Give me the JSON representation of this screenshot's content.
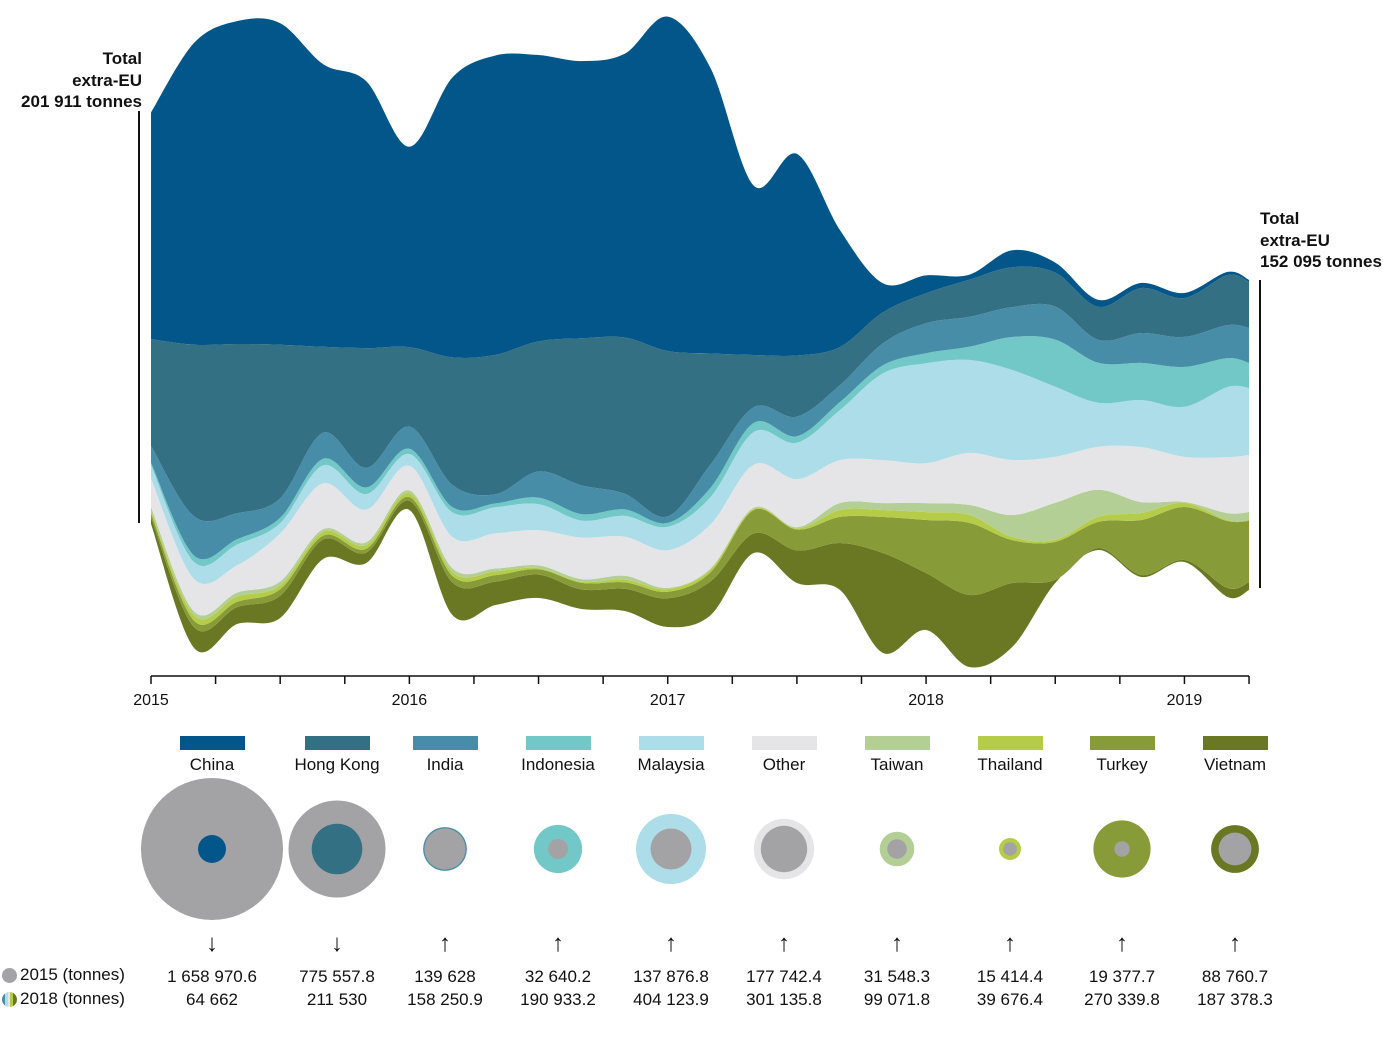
{
  "left_total": {
    "line1": "Total",
    "line2": "extra-EU",
    "line3": "201 911 tonnes"
  },
  "right_total": {
    "line1": "Total",
    "line2": "extra-EU",
    "line3": "152 095 tonnes"
  },
  "chart_data": {
    "type": "area",
    "subtype": "streamgraph",
    "unit": "tonnes",
    "x": [
      "2015-01",
      "2015-03",
      "2015-05",
      "2015-07",
      "2015-09",
      "2015-11",
      "2016-01",
      "2016-03",
      "2016-05",
      "2016-07",
      "2016-09",
      "2016-11",
      "2017-01",
      "2017-03",
      "2017-05",
      "2017-07",
      "2017-09",
      "2017-11",
      "2018-01",
      "2018-03",
      "2018-05",
      "2018-07",
      "2018-09",
      "2018-11",
      "2019-01",
      "2019-03",
      "2019-04"
    ],
    "x_tick_labels": [
      "2015",
      "2016",
      "2017",
      "2018",
      "2019"
    ],
    "grid": false,
    "legend_placement": "bottom",
    "series": [
      {
        "name": "China",
        "color": "#03568a",
        "values": [
          111200,
          148200,
          158500,
          157800,
          138700,
          131000,
          98400,
          137400,
          147000,
          140600,
          136100,
          139300,
          164200,
          139900,
          83100,
          99000,
          57400,
          14200,
          8800,
          2500,
          8300,
          4900,
          3400,
          2500,
          2500,
          1500,
          1000
        ]
      },
      {
        "name": "Hong Kong",
        "color": "#347083",
        "values": [
          52400,
          84300,
          83100,
          75400,
          42200,
          58800,
          39000,
          62600,
          68400,
          63900,
          72200,
          76700,
          81200,
          54300,
          25600,
          30000,
          18700,
          15200,
          14700,
          18200,
          19600,
          16700,
          16200,
          22100,
          19100,
          24600,
          22600
        ]
      },
      {
        "name": "India",
        "color": "#478da8",
        "values": [
          8300,
          19200,
          12800,
          9600,
          12800,
          9600,
          10900,
          10900,
          4500,
          12800,
          14100,
          7700,
          3200,
          11500,
          7700,
          9600,
          8300,
          10800,
          14700,
          14700,
          14700,
          16200,
          11300,
          14700,
          14700,
          16200,
          17200
        ]
      },
      {
        "name": "Indonesia",
        "color": "#71c8c6",
        "values": [
          1300,
          3200,
          2600,
          2600,
          3200,
          3200,
          2600,
          2600,
          1900,
          3200,
          3200,
          3200,
          1900,
          4500,
          4500,
          3200,
          3900,
          3900,
          4900,
          6400,
          16200,
          23100,
          19600,
          18200,
          19600,
          14200,
          12300
        ]
      },
      {
        "name": "Malaysia",
        "color": "#acdde9",
        "values": [
          6400,
          8300,
          10200,
          5100,
          8900,
          7700,
          5800,
          12100,
          12800,
          12800,
          8300,
          10200,
          11500,
          13400,
          16000,
          17900,
          24600,
          42700,
          49100,
          45700,
          44200,
          34400,
          21600,
          23100,
          24600,
          34400,
          32900
        ]
      },
      {
        "name": "Other",
        "color": "#e5e5e8",
        "values": [
          14100,
          16000,
          13400,
          23600,
          22400,
          16000,
          12100,
          15300,
          17300,
          17300,
          20400,
          19200,
          18500,
          21700,
          21100,
          23600,
          21100,
          21100,
          19600,
          25500,
          27000,
          22600,
          21100,
          27000,
          22100,
          27500,
          28000
        ]
      },
      {
        "name": "Taiwan",
        "color": "#b3cf95",
        "values": [
          1900,
          1900,
          1900,
          1900,
          1300,
          1300,
          1300,
          1900,
          1300,
          1300,
          1300,
          1900,
          600,
          600,
          600,
          600,
          3400,
          3400,
          4400,
          4900,
          10800,
          18200,
          13300,
          5400,
          500,
          3400,
          3900
        ]
      },
      {
        "name": "Thailand",
        "color": "#b5cc48",
        "values": [
          1300,
          2600,
          2600,
          1900,
          1900,
          1900,
          1900,
          1900,
          1900,
          600,
          600,
          1300,
          1300,
          1300,
          600,
          600,
          3400,
          3400,
          3900,
          3900,
          1500,
          1000,
          2500,
          3400,
          2000,
          500,
          500
        ]
      },
      {
        "name": "Turkey",
        "color": "#879c38",
        "values": [
          1900,
          3200,
          2600,
          3200,
          1900,
          1900,
          1900,
          3200,
          3200,
          2600,
          3200,
          3200,
          3200,
          4500,
          11500,
          10200,
          12800,
          17700,
          26000,
          35400,
          21100,
          18700,
          12800,
          27000,
          26000,
          32900,
          30000
        ]
      },
      {
        "name": "Vietnam",
        "color": "#6b7823",
        "values": [
          3200,
          10200,
          8300,
          10900,
          9600,
          5100,
          4500,
          16000,
          11500,
          11500,
          9600,
          10900,
          14100,
          16600,
          9600,
          16000,
          23100,
          49100,
          28000,
          35400,
          31400,
          1500,
          1000,
          1000,
          1000,
          4400,
          3900
        ]
      }
    ]
  },
  "comparison": {
    "key_2015": "2015 (tonnes)",
    "key_2018": "2018  (tonnes)",
    "circle_color_2015": "#a3a3a6",
    "items": [
      {
        "name": "China",
        "trend": "down",
        "v2015": "1 658 970.6",
        "v2018": "64 662",
        "n2015": 1658970.6,
        "n2018": 64662
      },
      {
        "name": "Hong Kong",
        "trend": "down",
        "v2015": "775 557.8",
        "v2018": "211 530",
        "n2015": 775557.8,
        "n2018": 211530
      },
      {
        "name": "India",
        "trend": "up",
        "v2015": "139 628",
        "v2018": "158 250.9",
        "n2015": 139628,
        "n2018": 158250.9
      },
      {
        "name": "Indonesia",
        "trend": "up",
        "v2015": "32 640.2",
        "v2018": "190 933.2",
        "n2015": 32640.2,
        "n2018": 190933.2
      },
      {
        "name": "Malaysia",
        "trend": "up",
        "v2015": "137 876.8",
        "v2018": "404 123.9",
        "n2015": 137876.8,
        "n2018": 404123.9
      },
      {
        "name": "Other",
        "trend": "up",
        "v2015": "177 742.4",
        "v2018": "301 135.8",
        "n2015": 177742.4,
        "n2018": 301135.8
      },
      {
        "name": "Taiwan",
        "trend": "up",
        "v2015": "31 548.3",
        "v2018": "99 071.8",
        "n2015": 31548.3,
        "n2018": 99071.8
      },
      {
        "name": "Thailand",
        "trend": "up",
        "v2015": "15 414.4",
        "v2018": "39 676.4",
        "n2015": 15414.4,
        "n2018": 39676.4
      },
      {
        "name": "Turkey",
        "trend": "up",
        "v2015": "19 377.7",
        "v2018": "270 339.8",
        "n2015": 19377.7,
        "n2018": 270339.8
      },
      {
        "name": "Vietnam",
        "trend": "up",
        "v2015": "88 760.7",
        "v2018": "187 378.3",
        "n2015": 88760.7,
        "n2018": 187378.3
      }
    ]
  }
}
